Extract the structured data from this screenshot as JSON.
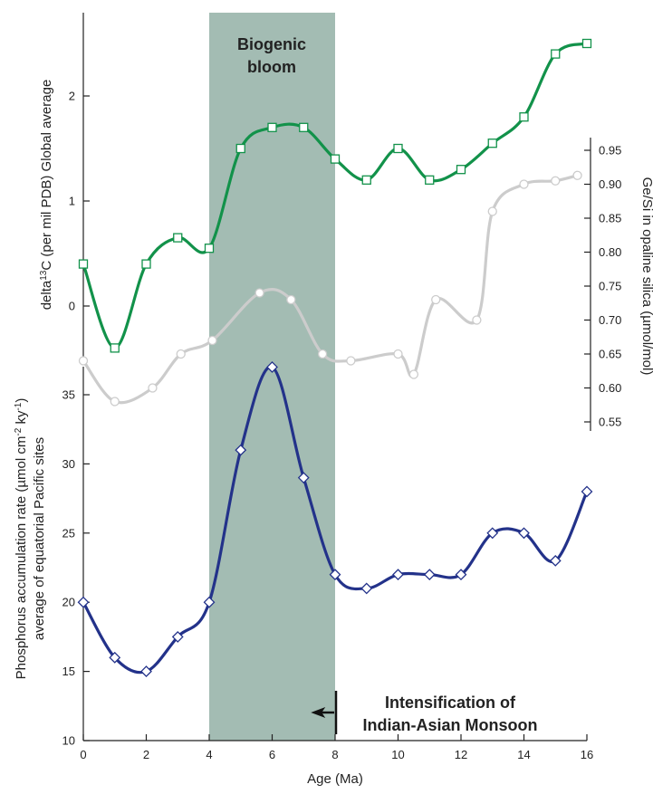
{
  "chart_data": {
    "type": "line",
    "xlabel": "Age (Ma)",
    "x_ticks": [
      "0",
      "2",
      "4",
      "6",
      "8",
      "10",
      "12",
      "14",
      "16"
    ],
    "xlim": [
      0,
      16
    ],
    "shaded_band": {
      "x_from": 4,
      "x_to": 8,
      "label_line1": "Biogenic",
      "label_line2": "bloom",
      "color": "#a3bcb3"
    },
    "annotation": {
      "line1": "Intensification of",
      "line2": "Indian-Asian Monsoon",
      "arrow_x": 8,
      "arrow_to_x": 7
    },
    "top_axis": {
      "ylabel_pre": "delta",
      "ylabel_sup": "13",
      "ylabel_post": "C (per mil PDB) Global average",
      "ylim": [
        -0.5,
        2.8
      ],
      "ticks": [
        "0",
        "1",
        "2"
      ]
    },
    "right_axis": {
      "ylabel": "Ge/Si in opaline silica (µmol/mol)",
      "ylim": [
        0.55,
        0.95
      ],
      "ticks": [
        "0.55",
        "0.60",
        "0.65",
        "0.70",
        "0.75",
        "0.80",
        "0.85",
        "0.90",
        "0.95"
      ]
    },
    "bottom_axis": {
      "ylabel_line1_pre": "Phosphorus accumulation rate (µmol cm",
      "ylabel_line1_sup1": "-2",
      "ylabel_line1_mid": " ky",
      "ylabel_line1_sup2": "-1",
      "ylabel_line1_post": ")",
      "ylabel_line2": "average of equatorial Pacific sites",
      "ylim": [
        10,
        39
      ],
      "ticks": [
        "10",
        "15",
        "20",
        "25",
        "30",
        "35"
      ]
    },
    "series": [
      {
        "axis": "top",
        "color": "#12924a",
        "marker": "square",
        "x": [
          0,
          1,
          2,
          3,
          4,
          5,
          6,
          7,
          8,
          9,
          10,
          11,
          12,
          13,
          14,
          15,
          16
        ],
        "y": [
          0.4,
          -0.4,
          0.4,
          0.65,
          0.55,
          1.5,
          1.7,
          1.7,
          1.4,
          1.2,
          1.5,
          1.2,
          1.3,
          1.55,
          1.8,
          2.4,
          2.5
        ]
      },
      {
        "axis": "right",
        "color": "#cccccc",
        "marker": "circle",
        "x": [
          0,
          1,
          2.2,
          3.1,
          4.1,
          5.6,
          6.6,
          7.6,
          8.5,
          10,
          10.5,
          11.2,
          12.5,
          13,
          14,
          15,
          15.7
        ],
        "y": [
          0.64,
          0.58,
          0.6,
          0.65,
          0.67,
          0.74,
          0.73,
          0.65,
          0.64,
          0.65,
          0.62,
          0.73,
          0.7,
          0.86,
          0.9,
          0.905,
          0.913
        ]
      },
      {
        "axis": "bottom",
        "color": "#23328a",
        "marker": "diamond",
        "x": [
          0,
          1,
          2,
          3,
          4,
          5,
          6,
          7,
          8,
          9,
          10,
          11,
          12,
          13,
          14,
          15,
          16
        ],
        "y": [
          20,
          16,
          15,
          17.5,
          20,
          31,
          37,
          29,
          22,
          21,
          22,
          22,
          22,
          25,
          25,
          23,
          28
        ]
      }
    ]
  }
}
